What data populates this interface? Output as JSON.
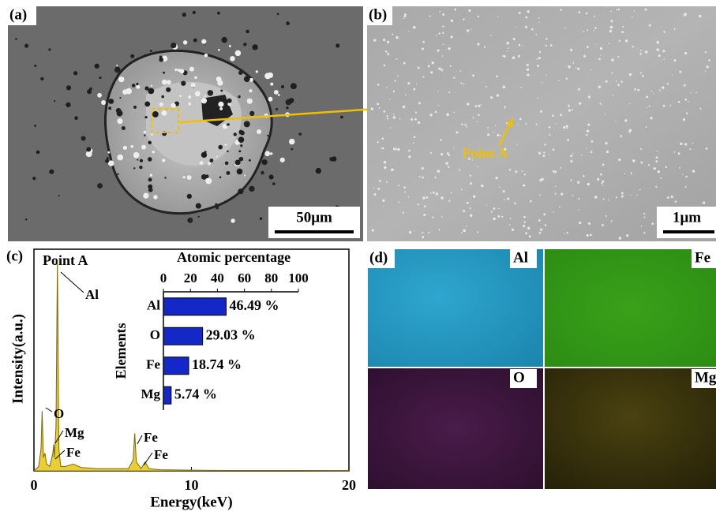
{
  "panels": {
    "a": {
      "label": "(a)",
      "scale_bar": "50μm"
    },
    "b": {
      "label": "(b)",
      "scale_bar": "1μm",
      "annotation": "Point A"
    },
    "d": {
      "label": "(d)",
      "maps": [
        "Al",
        "Fe",
        "O",
        "Mg"
      ]
    }
  },
  "chart_data": [
    {
      "type": "line",
      "panel_label": "(c)",
      "title": "Point A",
      "x_label": "Energy(keV)",
      "y_label": "Intensity(a.u.)",
      "xlim": [
        0,
        20
      ],
      "xticks": [
        0,
        10,
        20
      ],
      "ylim": [
        0,
        100
      ],
      "color": "#e6c200",
      "x": [
        0,
        0.3,
        0.45,
        0.52,
        0.6,
        0.7,
        0.8,
        1.0,
        1.2,
        1.25,
        1.3,
        1.4,
        1.49,
        1.58,
        1.7,
        2.0,
        2.5,
        3,
        4,
        5,
        6,
        6.3,
        6.4,
        6.5,
        6.8,
        7.06,
        7.3,
        8,
        10,
        12,
        15,
        20
      ],
      "values": [
        0,
        2,
        10,
        27,
        6,
        8,
        3,
        2,
        8,
        12,
        6,
        20,
        95,
        10,
        2,
        2,
        3,
        1.5,
        1,
        1,
        1,
        5,
        17,
        4,
        1,
        4,
        1,
        0.5,
        0.3,
        0.2,
        0.2,
        0.1
      ],
      "annotations": [
        "Al",
        "O",
        "Mg",
        "Fe",
        "Fe",
        "Fe"
      ]
    },
    {
      "type": "hbar",
      "title": "Atomic percentage",
      "y_label": "Elements",
      "categories": [
        "Al",
        "O",
        "Fe",
        "Mg"
      ],
      "values": [
        46.49,
        29.03,
        18.74,
        5.74
      ],
      "value_labels": [
        "46.49 %",
        "29.03 %",
        "18.74 %",
        "5.74 %"
      ],
      "xlim": [
        0,
        100
      ],
      "xticks": [
        0,
        20,
        40,
        60,
        80,
        100
      ],
      "color": "#1428c8"
    }
  ]
}
